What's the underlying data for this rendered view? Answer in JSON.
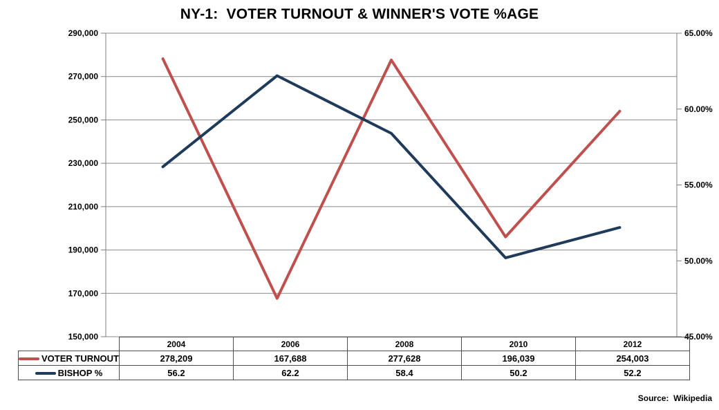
{
  "title": "NY-1:  VOTER TURNOUT & WINNER'S VOTE %AGE",
  "source": "Source:  Wikipedia",
  "colors": {
    "turnout_line": "#C0504D",
    "bishop_line": "#1F3B59",
    "gridline": "#898989",
    "axis_border": "#7F7F7F"
  },
  "chart_data": {
    "type": "line",
    "title": "NY-1:  VOTER TURNOUT & WINNER'S VOTE %AGE",
    "categories": [
      "2004",
      "2006",
      "2008",
      "2010",
      "2012"
    ],
    "series": [
      {
        "name": "VOTER TURNOUT",
        "axis": "left",
        "color": "#C0504D",
        "values": [
          278209,
          167688,
          277628,
          196039,
          254003
        ],
        "display": [
          "278,209",
          "167,688",
          "277,628",
          "196,039",
          "254,003"
        ]
      },
      {
        "name": "BISHOP %",
        "axis": "right",
        "color": "#1F3B59",
        "values": [
          56.2,
          62.2,
          58.4,
          50.2,
          52.2
        ],
        "display": [
          "56.2",
          "62.2",
          "58.4",
          "50.2",
          "52.2"
        ]
      }
    ],
    "left_axis": {
      "min": 150000,
      "max": 290000,
      "step": 20000,
      "tick_labels": [
        "290,000",
        "270,000",
        "250,000",
        "230,000",
        "210,000",
        "190,000",
        "170,000",
        "150,000"
      ]
    },
    "right_axis": {
      "min": 45,
      "max": 65,
      "step": 5,
      "tick_labels": [
        "65.00%",
        "60.00%",
        "55.00%",
        "50.00%",
        "45.00%"
      ]
    },
    "grid": true,
    "legend_position": "table-left"
  }
}
